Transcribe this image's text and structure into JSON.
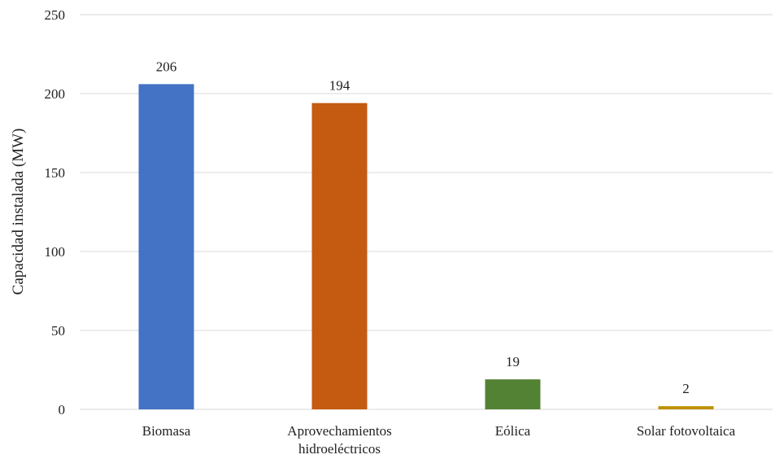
{
  "chart_data": {
    "type": "bar",
    "title": "",
    "xlabel": "",
    "ylabel": "Capacidad instalada (MW)",
    "ylim": [
      0,
      250
    ],
    "yticks": [
      0,
      50,
      100,
      150,
      200,
      250
    ],
    "grid": true,
    "legend": "none",
    "categories": [
      [
        "Biomasa"
      ],
      [
        "Aprovechamientos",
        "hidroeléctricos"
      ],
      [
        "Eólica"
      ],
      [
        "Solar fotovoltaica"
      ]
    ],
    "values": [
      206,
      194,
      19,
      2
    ],
    "colors": [
      "#4472C4",
      "#C55A11",
      "#548235",
      "#BF9000"
    ],
    "data_labels": [
      "206",
      "194",
      "19",
      "2"
    ]
  }
}
